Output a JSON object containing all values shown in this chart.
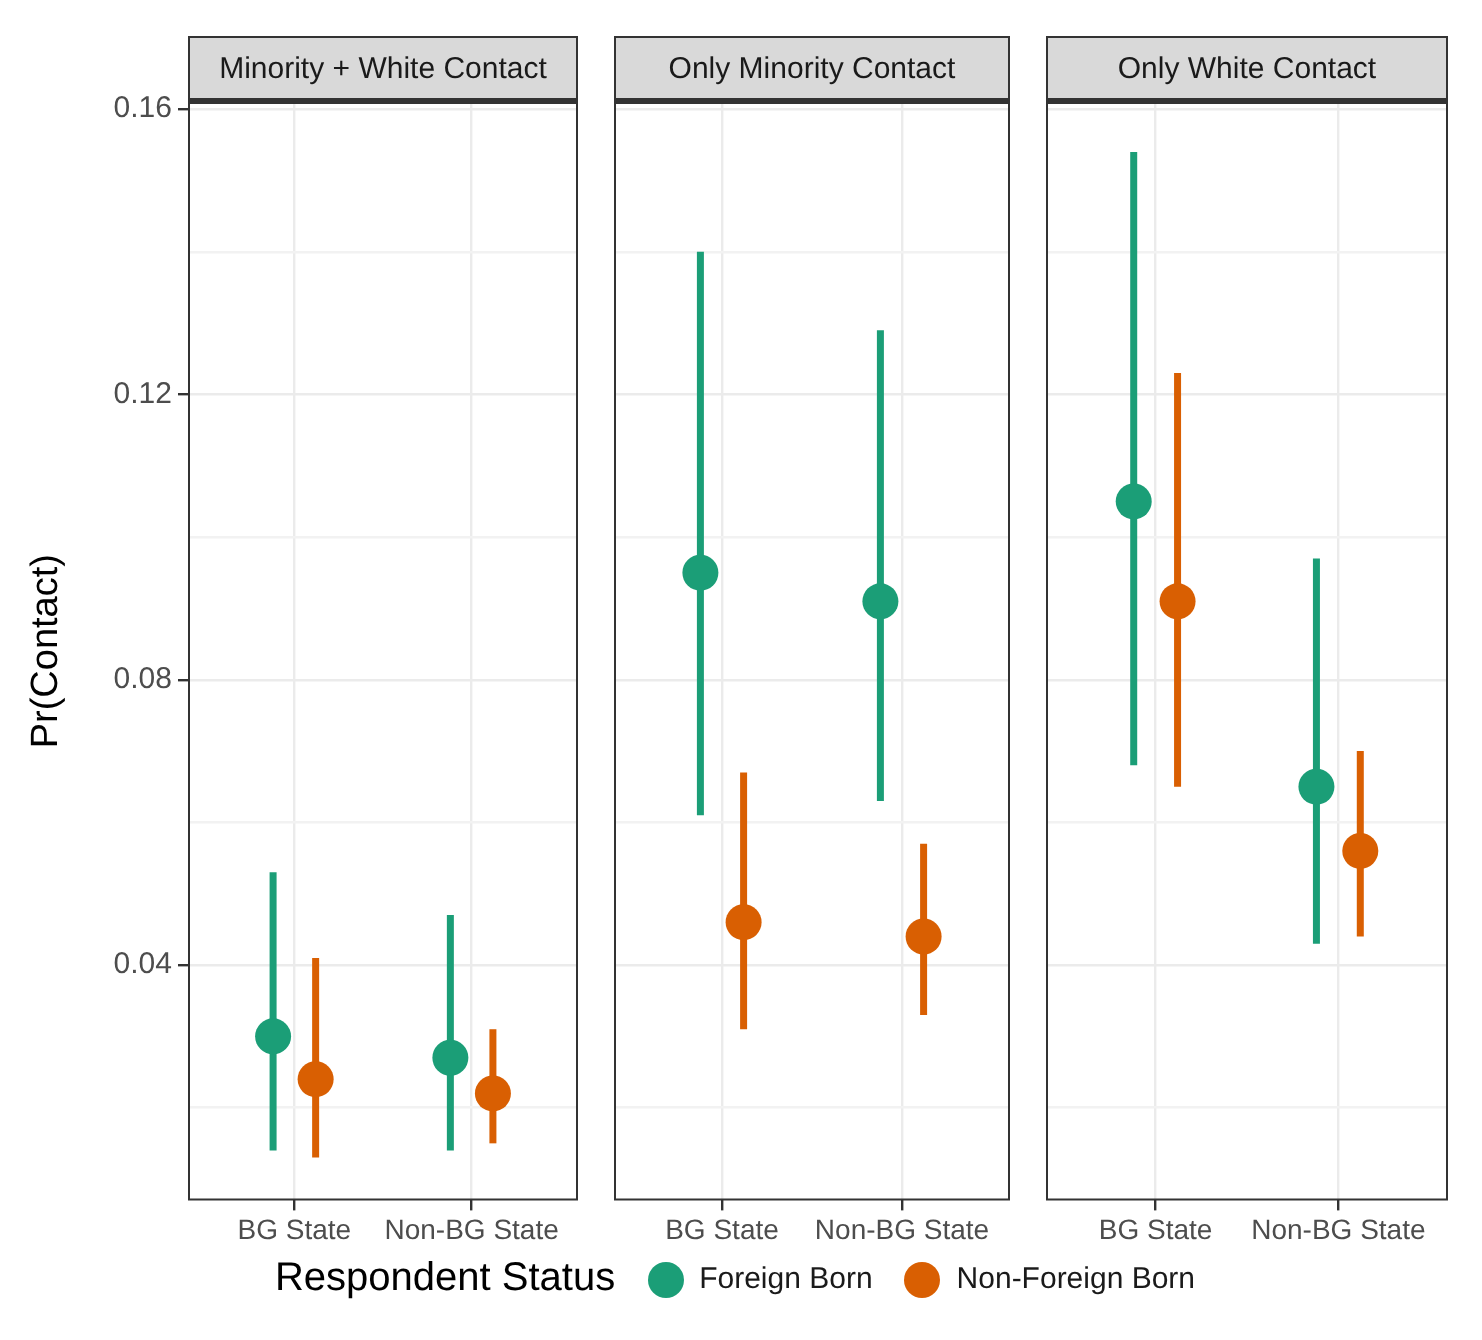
{
  "chart_data": [
    {
      "type": "scatter",
      "title": "Minority + White Contact",
      "ylabel": "Pr(Contact)",
      "legend_title": "Respondent Status",
      "legend": "bottom",
      "marker": "circle",
      "grid": true,
      "categories": [
        "BG State",
        "Non-BG State"
      ],
      "ylim": [
        0.007,
        0.161
      ],
      "yticks": [
        {
          "value": 0.02,
          "label": null
        },
        0.04,
        {
          "value": 0.06,
          "label": null
        },
        0.08,
        {
          "value": 0.1,
          "label": null
        },
        0.12,
        {
          "value": 0.14,
          "label": null
        },
        0.16
      ],
      "series": [
        {
          "name": "Foreign Born",
          "color": "#1b9e77",
          "values": [
            0.03,
            0.027
          ],
          "errors": [
            [
              0.014,
              0.053
            ],
            [
              0.014,
              0.047
            ]
          ]
        },
        {
          "name": "Non-Foreign Born",
          "color": "#d95f02",
          "values": [
            0.024,
            0.022
          ],
          "errors": [
            [
              0.013,
              0.041
            ],
            [
              0.015,
              0.031
            ]
          ]
        }
      ]
    },
    {
      "type": "scatter",
      "title": "Only Minority Contact",
      "marker": "circle",
      "grid": true,
      "tick_labels": "x",
      "categories": [
        "BG State",
        "Non-BG State"
      ],
      "ylim": [
        0.007,
        0.161
      ],
      "yticks": [
        {
          "value": 0.02,
          "label": null
        },
        0.04,
        {
          "value": 0.06,
          "label": null
        },
        0.08,
        {
          "value": 0.1,
          "label": null
        },
        0.12,
        {
          "value": 0.14,
          "label": null
        },
        0.16
      ],
      "series": [
        {
          "name": "Foreign Born",
          "color": "#1b9e77",
          "values": [
            0.095,
            0.091
          ],
          "errors": [
            [
              0.061,
              0.14
            ],
            [
              0.063,
              0.129
            ]
          ]
        },
        {
          "name": "Non-Foreign Born",
          "color": "#d95f02",
          "values": [
            0.046,
            0.044
          ],
          "errors": [
            [
              0.031,
              0.067
            ],
            [
              0.033,
              0.057
            ]
          ]
        }
      ]
    },
    {
      "type": "scatter",
      "title": "Only White Contact",
      "marker": "circle",
      "grid": true,
      "tick_labels": "x",
      "categories": [
        "BG State",
        "Non-BG State"
      ],
      "ylim": [
        0.007,
        0.161
      ],
      "yticks": [
        {
          "value": 0.02,
          "label": null
        },
        0.04,
        {
          "value": 0.06,
          "label": null
        },
        0.08,
        {
          "value": 0.1,
          "label": null
        },
        0.12,
        {
          "value": 0.14,
          "label": null
        },
        0.16
      ],
      "series": [
        {
          "name": "Foreign Born",
          "color": "#1b9e77",
          "values": [
            0.105,
            0.065
          ],
          "errors": [
            [
              0.068,
              0.154
            ],
            [
              0.043,
              0.097
            ]
          ]
        },
        {
          "name": "Non-Foreign Born",
          "color": "#d95f02",
          "values": [
            0.091,
            0.056
          ],
          "errors": [
            [
              0.065,
              0.123
            ],
            [
              0.044,
              0.07
            ]
          ]
        }
      ]
    }
  ]
}
